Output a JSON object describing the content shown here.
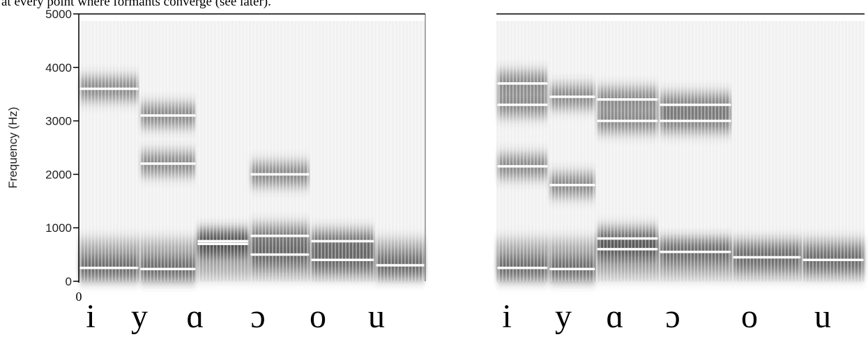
{
  "text_line": "at every point where formants converge (see later).",
  "panels": [
    {
      "y_label": "Frequency (Hz)",
      "ylim": [
        0,
        5000
      ],
      "yticks": [
        0,
        1000,
        2000,
        3000,
        4000,
        5000
      ],
      "x_origin_label": "0",
      "segments": [
        {
          "vowel": "i",
          "formants": [
            250,
            3600
          ]
        },
        {
          "vowel": "y",
          "formants": [
            230,
            2200,
            3100
          ]
        },
        {
          "vowel": "ɑ",
          "formants": [
            700,
            750
          ]
        },
        {
          "vowel": "ɔ",
          "formants": [
            500,
            850,
            2000
          ]
        },
        {
          "vowel": "o",
          "formants": [
            400,
            750
          ]
        },
        {
          "vowel": "u",
          "formants": [
            300
          ]
        }
      ]
    },
    {
      "segments": [
        {
          "vowel": "i",
          "formants": [
            250,
            2150,
            3300,
            3700
          ]
        },
        {
          "vowel": "y",
          "formants": [
            230,
            1800,
            3450
          ]
        },
        {
          "vowel": "ɑ",
          "formants": [
            600,
            800,
            3000,
            3400
          ]
        },
        {
          "vowel": "ɔ",
          "formants": [
            550,
            3000,
            3300
          ]
        },
        {
          "vowel": "o",
          "formants": [
            450
          ]
        },
        {
          "vowel": "u",
          "formants": [
            400
          ]
        }
      ]
    }
  ]
}
